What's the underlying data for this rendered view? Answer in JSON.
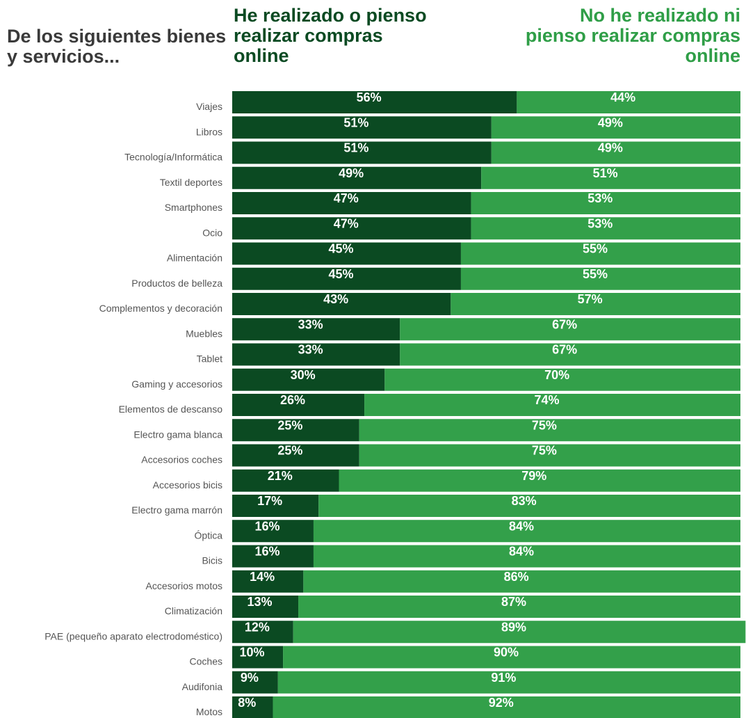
{
  "header": {
    "question": "De los siguientes bienes y servicios...",
    "left_group": "He realizado o pienso realizar compras online",
    "right_group": "No he realizado ni pienso realizar compras online"
  },
  "colors": {
    "realizado": "#0b4a22",
    "no_realizado": "#33a04a",
    "label": "#555555"
  },
  "chart_data": {
    "type": "bar",
    "orientation": "horizontal",
    "stacked": true,
    "value_unit": "%",
    "categories": [
      "Viajes",
      "Libros",
      "Tecnología/Informática",
      "Textil deportes",
      "Smartphones",
      "Ocio",
      "Alimentación",
      "Productos de belleza",
      "Complementos  y decoración",
      "Muebles",
      "Tablet",
      "Gaming y accesorios",
      "Elementos de descanso",
      "Electro gama blanca",
      "Accesorios coches",
      "Accesorios bicis",
      "Electro gama marrón",
      "Óptica",
      "Bicis",
      "Accesorios motos",
      "Climatización",
      "PAE (pequeño aparato electrodoméstico)",
      "Coches",
      "Audifonia",
      "Motos"
    ],
    "series": [
      {
        "name": "He realizado o pienso realizar compras online",
        "color": "#0b4a22",
        "values": [
          56,
          51,
          51,
          49,
          47,
          47,
          45,
          45,
          43,
          33,
          33,
          30,
          26,
          25,
          25,
          21,
          17,
          16,
          16,
          14,
          13,
          12,
          10,
          9,
          8
        ]
      },
      {
        "name": "No he realizado ni pienso realizar compras online",
        "color": "#33a04a",
        "values": [
          44,
          49,
          49,
          51,
          53,
          53,
          55,
          55,
          57,
          67,
          67,
          70,
          74,
          75,
          75,
          79,
          83,
          84,
          84,
          86,
          87,
          89,
          90,
          91,
          92
        ]
      }
    ],
    "xlim": [
      0,
      100
    ],
    "grid": false,
    "legend": "top"
  }
}
